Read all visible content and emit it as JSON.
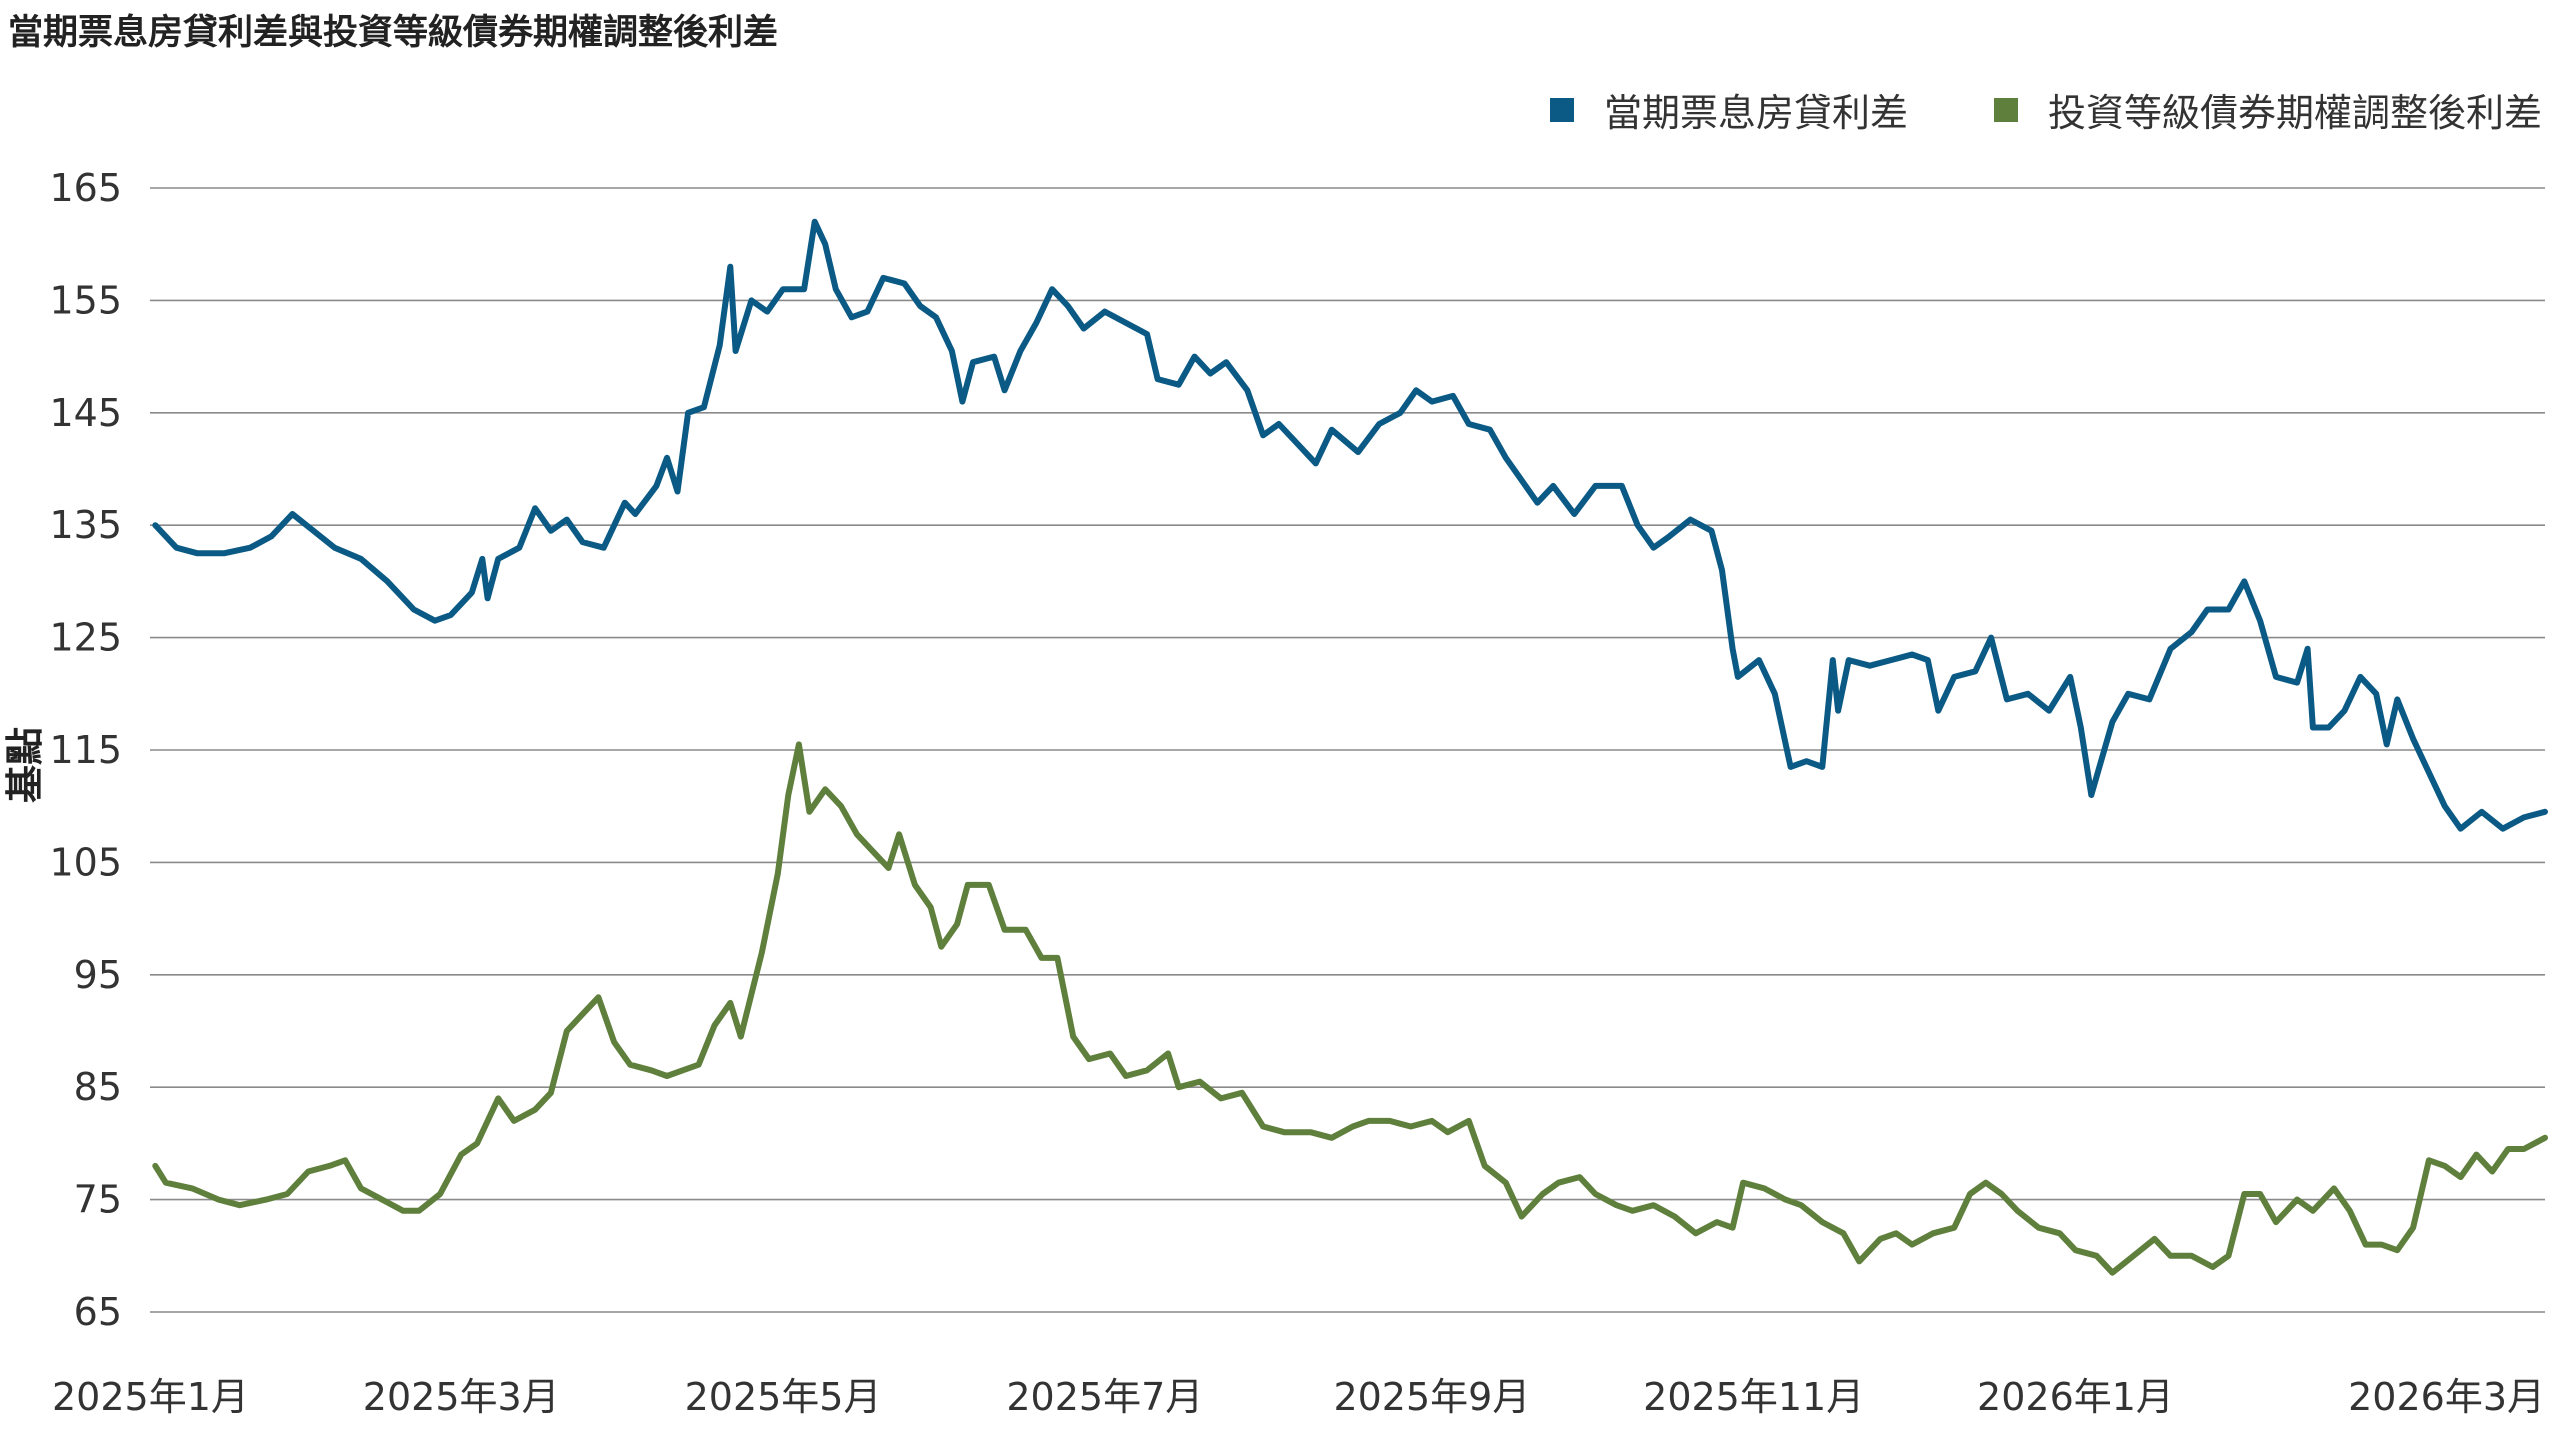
{
  "chart_data": {
    "type": "line",
    "title": "當期票息房貸利差與投資等級債券期權調整後利差",
    "ylabel": "基點",
    "ylim": [
      65,
      165
    ],
    "yticks": [
      65,
      75,
      85,
      95,
      105,
      115,
      125,
      135,
      145,
      155,
      165
    ],
    "x_range": [
      "2025-01-01",
      "2026-03-31"
    ],
    "xticks": [
      {
        "date": "2025-01-01",
        "label": "2025年1月"
      },
      {
        "date": "2025-03-01",
        "label": "2025年3月"
      },
      {
        "date": "2025-05-01",
        "label": "2025年5月"
      },
      {
        "date": "2025-07-01",
        "label": "2025年7月"
      },
      {
        "date": "2025-09-01",
        "label": "2025年9月"
      },
      {
        "date": "2025-11-01",
        "label": "2025年11月"
      },
      {
        "date": "2026-01-01",
        "label": "2026年1月"
      },
      {
        "date": "2026-03-01",
        "label": "2026年3月"
      }
    ],
    "grid": true,
    "legend_position": "top-right",
    "series": [
      {
        "name": "當期票息房貸利差",
        "color": "#0b5a85",
        "points": [
          [
            "2025-01-02",
            135
          ],
          [
            "2025-01-06",
            133
          ],
          [
            "2025-01-10",
            132.5
          ],
          [
            "2025-01-15",
            132.5
          ],
          [
            "2025-01-20",
            133
          ],
          [
            "2025-01-24",
            134
          ],
          [
            "2025-01-28",
            136
          ],
          [
            "2025-02-01",
            134.5
          ],
          [
            "2025-02-05",
            133
          ],
          [
            "2025-02-10",
            132
          ],
          [
            "2025-02-15",
            130
          ],
          [
            "2025-02-20",
            127.5
          ],
          [
            "2025-02-24",
            126.5
          ],
          [
            "2025-02-27",
            127
          ],
          [
            "2025-03-03",
            129
          ],
          [
            "2025-03-05",
            132
          ],
          [
            "2025-03-06",
            128.5
          ],
          [
            "2025-03-08",
            132
          ],
          [
            "2025-03-12",
            133
          ],
          [
            "2025-03-15",
            136.5
          ],
          [
            "2025-03-18",
            134.5
          ],
          [
            "2025-03-21",
            135.5
          ],
          [
            "2025-03-24",
            133.5
          ],
          [
            "2025-03-28",
            133
          ],
          [
            "2025-04-01",
            137
          ],
          [
            "2025-04-03",
            136
          ],
          [
            "2025-04-07",
            138.5
          ],
          [
            "2025-04-09",
            141
          ],
          [
            "2025-04-11",
            138
          ],
          [
            "2025-04-13",
            145
          ],
          [
            "2025-04-16",
            145.5
          ],
          [
            "2025-04-19",
            151
          ],
          [
            "2025-04-21",
            158
          ],
          [
            "2025-04-22",
            150.5
          ],
          [
            "2025-04-25",
            155
          ],
          [
            "2025-04-28",
            154
          ],
          [
            "2025-05-01",
            156
          ],
          [
            "2025-05-05",
            156
          ],
          [
            "2025-05-07",
            162
          ],
          [
            "2025-05-09",
            160
          ],
          [
            "2025-05-11",
            156
          ],
          [
            "2025-05-14",
            153.5
          ],
          [
            "2025-05-17",
            154
          ],
          [
            "2025-05-20",
            157
          ],
          [
            "2025-05-24",
            156.5
          ],
          [
            "2025-05-27",
            154.5
          ],
          [
            "2025-05-30",
            153.5
          ],
          [
            "2025-06-02",
            150.5
          ],
          [
            "2025-06-04",
            146
          ],
          [
            "2025-06-06",
            149.5
          ],
          [
            "2025-06-10",
            150
          ],
          [
            "2025-06-12",
            147
          ],
          [
            "2025-06-15",
            150.5
          ],
          [
            "2025-06-18",
            153
          ],
          [
            "2025-06-21",
            156
          ],
          [
            "2025-06-24",
            154.5
          ],
          [
            "2025-06-27",
            152.5
          ],
          [
            "2025-07-01",
            154
          ],
          [
            "2025-07-05",
            153
          ],
          [
            "2025-07-09",
            152
          ],
          [
            "2025-07-11",
            148
          ],
          [
            "2025-07-15",
            147.5
          ],
          [
            "2025-07-18",
            150
          ],
          [
            "2025-07-21",
            148.5
          ],
          [
            "2025-07-24",
            149.5
          ],
          [
            "2025-07-28",
            147
          ],
          [
            "2025-07-31",
            143
          ],
          [
            "2025-08-03",
            144
          ],
          [
            "2025-08-07",
            142
          ],
          [
            "2025-08-10",
            140.5
          ],
          [
            "2025-08-13",
            143.5
          ],
          [
            "2025-08-18",
            141.5
          ],
          [
            "2025-08-22",
            144
          ],
          [
            "2025-08-26",
            145
          ],
          [
            "2025-08-29",
            147
          ],
          [
            "2025-09-01",
            146
          ],
          [
            "2025-09-05",
            146.5
          ],
          [
            "2025-09-08",
            144
          ],
          [
            "2025-09-12",
            143.5
          ],
          [
            "2025-09-15",
            141
          ],
          [
            "2025-09-18",
            139
          ],
          [
            "2025-09-21",
            137
          ],
          [
            "2025-09-24",
            138.5
          ],
          [
            "2025-09-28",
            136
          ],
          [
            "2025-10-02",
            138.5
          ],
          [
            "2025-10-07",
            138.5
          ],
          [
            "2025-10-10",
            135
          ],
          [
            "2025-10-13",
            133
          ],
          [
            "2025-10-16",
            134
          ],
          [
            "2025-10-20",
            135.5
          ],
          [
            "2025-10-24",
            134.5
          ],
          [
            "2025-10-26",
            131
          ],
          [
            "2025-10-28",
            124
          ],
          [
            "2025-10-29",
            121.5
          ],
          [
            "2025-11-02",
            123
          ],
          [
            "2025-11-05",
            120
          ],
          [
            "2025-11-08",
            113.5
          ],
          [
            "2025-11-11",
            114
          ],
          [
            "2025-11-14",
            113.5
          ],
          [
            "2025-11-16",
            123
          ],
          [
            "2025-11-17",
            118.5
          ],
          [
            "2025-11-19",
            123
          ],
          [
            "2025-11-23",
            122.5
          ],
          [
            "2025-11-27",
            123
          ],
          [
            "2025-12-01",
            123.5
          ],
          [
            "2025-12-04",
            123
          ],
          [
            "2025-12-06",
            118.5
          ],
          [
            "2025-12-09",
            121.5
          ],
          [
            "2025-12-13",
            122
          ],
          [
            "2025-12-16",
            125
          ],
          [
            "2025-12-19",
            119.5
          ],
          [
            "2025-12-23",
            120
          ],
          [
            "2025-12-27",
            118.5
          ],
          [
            "2025-12-31",
            121.5
          ],
          [
            "2026-01-02",
            117
          ],
          [
            "2026-01-04",
            111
          ],
          [
            "2026-01-08",
            117.5
          ],
          [
            "2026-01-11",
            120
          ],
          [
            "2026-01-15",
            119.5
          ],
          [
            "2026-01-19",
            124
          ],
          [
            "2026-01-23",
            125.5
          ],
          [
            "2026-01-26",
            127.5
          ],
          [
            "2026-01-30",
            127.5
          ],
          [
            "2026-02-02",
            130
          ],
          [
            "2026-02-05",
            126.5
          ],
          [
            "2026-02-08",
            121.5
          ],
          [
            "2026-02-12",
            121
          ],
          [
            "2026-02-14",
            124
          ],
          [
            "2026-02-15",
            117
          ],
          [
            "2026-02-18",
            117
          ],
          [
            "2026-02-21",
            118.5
          ],
          [
            "2026-02-24",
            121.5
          ],
          [
            "2026-02-27",
            120
          ],
          [
            "2026-03-01",
            115.5
          ],
          [
            "2026-03-03",
            119.5
          ],
          [
            "2026-03-06",
            116
          ],
          [
            "2026-03-09",
            113
          ],
          [
            "2026-03-12",
            110
          ],
          [
            "2026-03-15",
            108
          ],
          [
            "2026-03-19",
            109.5
          ],
          [
            "2026-03-23",
            108
          ],
          [
            "2026-03-27",
            109
          ],
          [
            "2026-03-31",
            109.5
          ]
        ]
      },
      {
        "name": "投資等級債券期權調整後利差",
        "color": "#5f7f3c",
        "points": [
          [
            "2025-01-02",
            78
          ],
          [
            "2025-01-04",
            76.5
          ],
          [
            "2025-01-09",
            76
          ],
          [
            "2025-01-14",
            75
          ],
          [
            "2025-01-18",
            74.5
          ],
          [
            "2025-01-23",
            75
          ],
          [
            "2025-01-27",
            75.5
          ],
          [
            "2025-01-31",
            77.5
          ],
          [
            "2025-02-04",
            78
          ],
          [
            "2025-02-07",
            78.5
          ],
          [
            "2025-02-10",
            76
          ],
          [
            "2025-02-14",
            75
          ],
          [
            "2025-02-18",
            74
          ],
          [
            "2025-02-21",
            74
          ],
          [
            "2025-02-25",
            75.5
          ],
          [
            "2025-03-01",
            79
          ],
          [
            "2025-03-04",
            80
          ],
          [
            "2025-03-08",
            84
          ],
          [
            "2025-03-11",
            82
          ],
          [
            "2025-03-15",
            83
          ],
          [
            "2025-03-18",
            84.5
          ],
          [
            "2025-03-21",
            90
          ],
          [
            "2025-03-24",
            91.5
          ],
          [
            "2025-03-27",
            93
          ],
          [
            "2025-03-30",
            89
          ],
          [
            "2025-04-02",
            87
          ],
          [
            "2025-04-06",
            86.5
          ],
          [
            "2025-04-09",
            86
          ],
          [
            "2025-04-12",
            86.5
          ],
          [
            "2025-04-15",
            87
          ],
          [
            "2025-04-18",
            90.5
          ],
          [
            "2025-04-21",
            92.5
          ],
          [
            "2025-04-23",
            89.5
          ],
          [
            "2025-04-27",
            97
          ],
          [
            "2025-04-30",
            104
          ],
          [
            "2025-05-02",
            111
          ],
          [
            "2025-05-04",
            115.5
          ],
          [
            "2025-05-06",
            109.5
          ],
          [
            "2025-05-09",
            111.5
          ],
          [
            "2025-05-12",
            110
          ],
          [
            "2025-05-15",
            107.5
          ],
          [
            "2025-05-18",
            106
          ],
          [
            "2025-05-21",
            104.5
          ],
          [
            "2025-05-23",
            107.5
          ],
          [
            "2025-05-26",
            103
          ],
          [
            "2025-05-29",
            101
          ],
          [
            "2025-05-31",
            97.5
          ],
          [
            "2025-06-03",
            99.5
          ],
          [
            "2025-06-05",
            103
          ],
          [
            "2025-06-09",
            103
          ],
          [
            "2025-06-12",
            99
          ],
          [
            "2025-06-16",
            99
          ],
          [
            "2025-06-19",
            96.5
          ],
          [
            "2025-06-22",
            96.5
          ],
          [
            "2025-06-25",
            89.5
          ],
          [
            "2025-06-28",
            87.5
          ],
          [
            "2025-07-02",
            88
          ],
          [
            "2025-07-05",
            86
          ],
          [
            "2025-07-09",
            86.5
          ],
          [
            "2025-07-13",
            88
          ],
          [
            "2025-07-15",
            85
          ],
          [
            "2025-07-19",
            85.5
          ],
          [
            "2025-07-23",
            84
          ],
          [
            "2025-07-27",
            84.5
          ],
          [
            "2025-07-31",
            81.5
          ],
          [
            "2025-08-04",
            81
          ],
          [
            "2025-08-09",
            81
          ],
          [
            "2025-08-13",
            80.5
          ],
          [
            "2025-08-17",
            81.5
          ],
          [
            "2025-08-20",
            82
          ],
          [
            "2025-08-24",
            82
          ],
          [
            "2025-08-28",
            81.5
          ],
          [
            "2025-09-01",
            82
          ],
          [
            "2025-09-04",
            81
          ],
          [
            "2025-09-08",
            82
          ],
          [
            "2025-09-11",
            78
          ],
          [
            "2025-09-15",
            76.5
          ],
          [
            "2025-09-18",
            73.5
          ],
          [
            "2025-09-22",
            75.5
          ],
          [
            "2025-09-25",
            76.5
          ],
          [
            "2025-09-29",
            77
          ],
          [
            "2025-10-02",
            75.5
          ],
          [
            "2025-10-06",
            74.5
          ],
          [
            "2025-10-09",
            74
          ],
          [
            "2025-10-13",
            74.5
          ],
          [
            "2025-10-17",
            73.5
          ],
          [
            "2025-10-21",
            72
          ],
          [
            "2025-10-25",
            73
          ],
          [
            "2025-10-28",
            72.5
          ],
          [
            "2025-10-30",
            76.5
          ],
          [
            "2025-11-03",
            76
          ],
          [
            "2025-11-07",
            75
          ],
          [
            "2025-11-10",
            74.5
          ],
          [
            "2025-11-14",
            73
          ],
          [
            "2025-11-18",
            72
          ],
          [
            "2025-11-21",
            69.5
          ],
          [
            "2025-11-25",
            71.5
          ],
          [
            "2025-11-28",
            72
          ],
          [
            "2025-12-01",
            71
          ],
          [
            "2025-12-05",
            72
          ],
          [
            "2025-12-09",
            72.5
          ],
          [
            "2025-12-12",
            75.5
          ],
          [
            "2025-12-15",
            76.5
          ],
          [
            "2025-12-18",
            75.5
          ],
          [
            "2025-12-21",
            74
          ],
          [
            "2025-12-25",
            72.5
          ],
          [
            "2025-12-29",
            72
          ],
          [
            "2026-01-01",
            70.5
          ],
          [
            "2026-01-05",
            70
          ],
          [
            "2026-01-08",
            68.5
          ],
          [
            "2026-01-12",
            70
          ],
          [
            "2026-01-16",
            71.5
          ],
          [
            "2026-01-19",
            70
          ],
          [
            "2026-01-23",
            70
          ],
          [
            "2026-01-27",
            69
          ],
          [
            "2026-01-30",
            70
          ],
          [
            "2026-02-02",
            75.5
          ],
          [
            "2026-02-05",
            75.5
          ],
          [
            "2026-02-08",
            73
          ],
          [
            "2026-02-12",
            75
          ],
          [
            "2026-02-15",
            74
          ],
          [
            "2026-02-19",
            76
          ],
          [
            "2026-02-22",
            74
          ],
          [
            "2026-02-25",
            71
          ],
          [
            "2026-02-28",
            71
          ],
          [
            "2026-03-03",
            70.5
          ],
          [
            "2026-03-06",
            72.5
          ],
          [
            "2026-03-09",
            78.5
          ],
          [
            "2026-03-12",
            78
          ],
          [
            "2026-03-15",
            77
          ],
          [
            "2026-03-18",
            79
          ],
          [
            "2026-03-21",
            77.5
          ],
          [
            "2026-03-24",
            79.5
          ],
          [
            "2026-03-27",
            79.5
          ],
          [
            "2026-03-31",
            80.5
          ]
        ]
      }
    ]
  }
}
